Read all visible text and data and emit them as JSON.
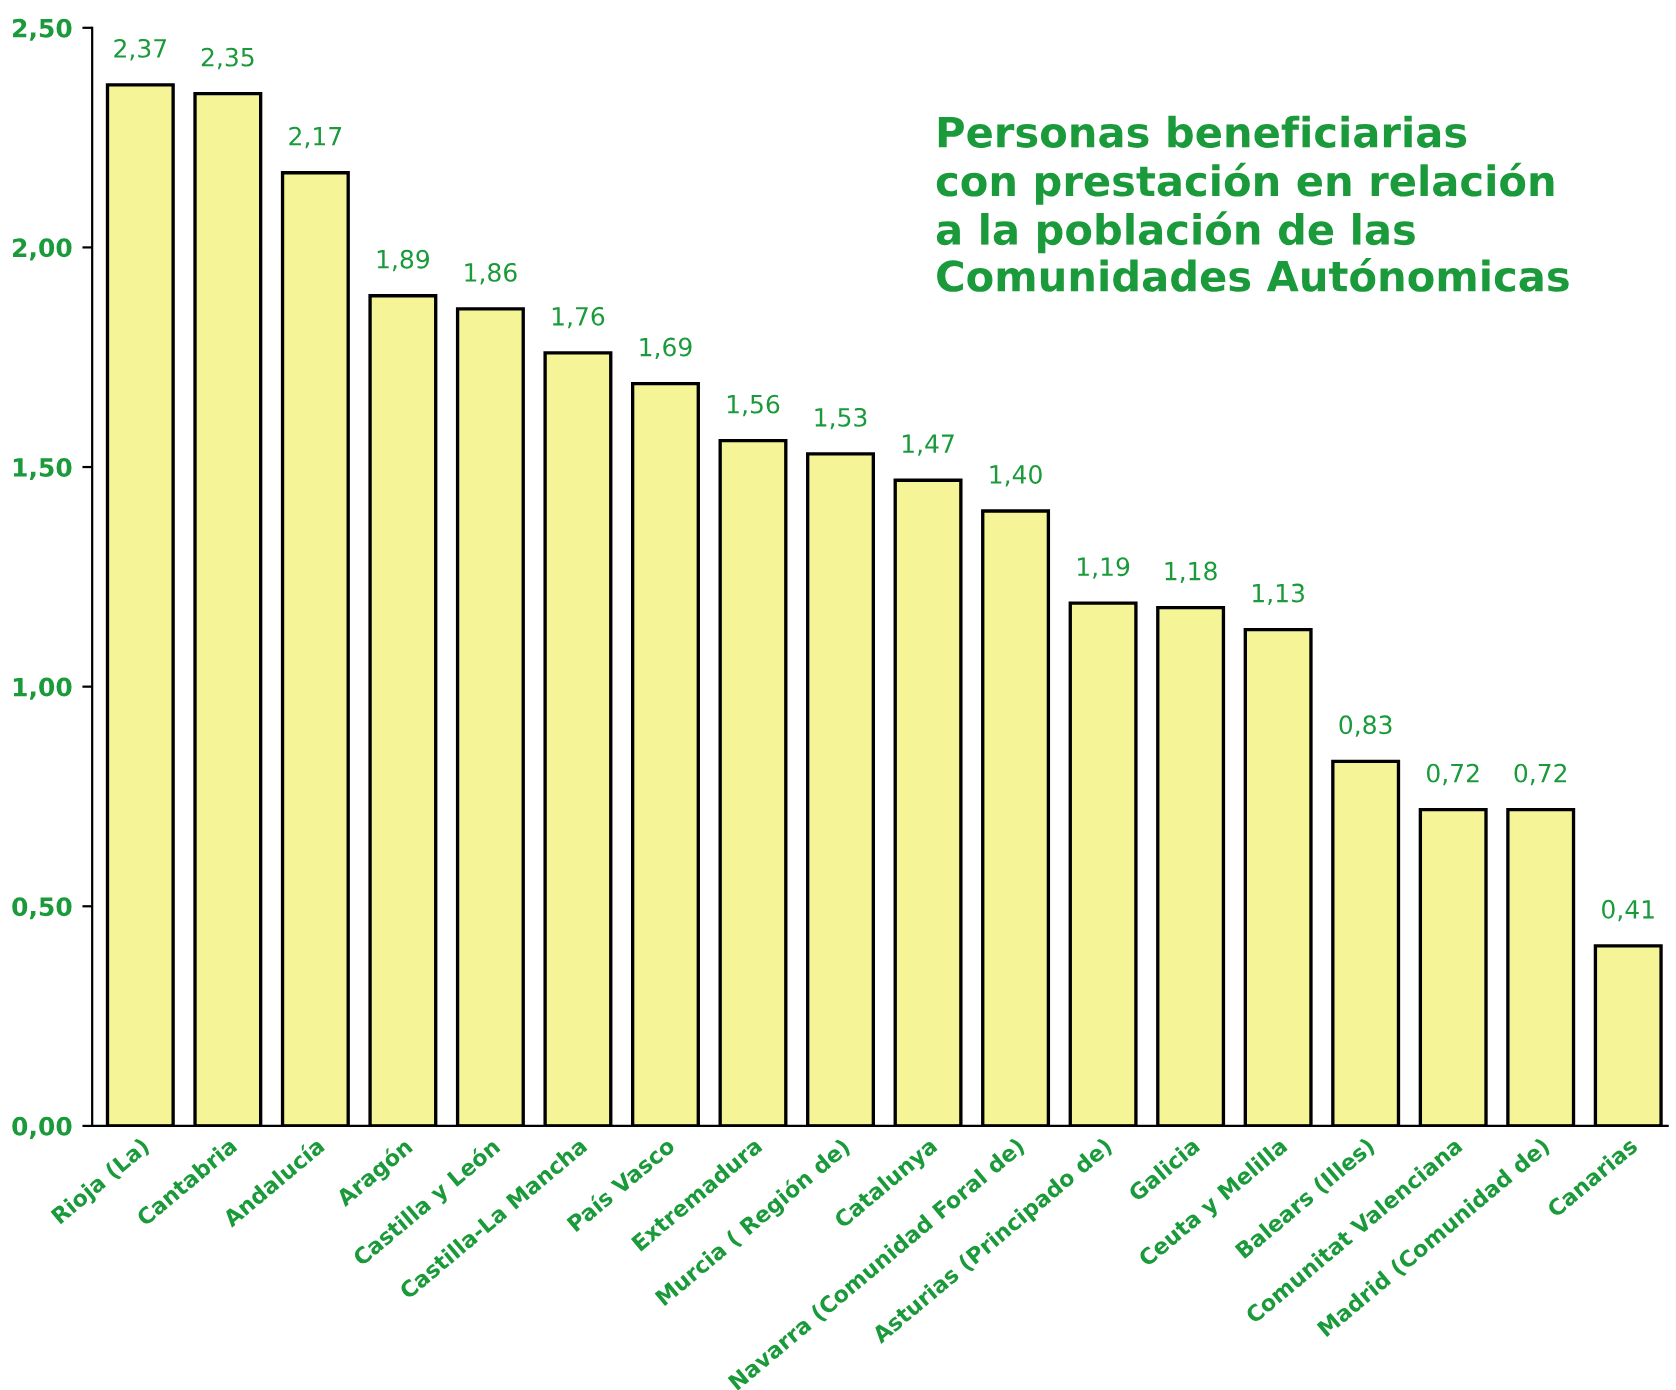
{
  "chart_data": {
    "type": "bar",
    "title": "Personas beneficiarias\ncon prestación en relación\na la población de las\nComunidades Autónomicas",
    "categories": [
      "Rioja (La)",
      "Cantabria",
      "Andalucía",
      "Aragón",
      "Castilla y León",
      "Castilla-La Mancha",
      "País Vasco",
      "Extremadura",
      "Murcia ( Región de)",
      "Catalunya",
      "Navarra (Comunidad Foral de)",
      "Asturias (Principado de)",
      "Galicia",
      "Ceuta y Melilla",
      "Balears (Illes)",
      "Comunitat Valenciana",
      "Madrid (Comunidad de)",
      "Canarias"
    ],
    "values": [
      2.37,
      2.35,
      2.17,
      1.89,
      1.86,
      1.76,
      1.69,
      1.56,
      1.53,
      1.47,
      1.4,
      1.19,
      1.18,
      1.13,
      0.83,
      0.72,
      0.72,
      0.41
    ],
    "value_labels": [
      "2,37",
      "2,35",
      "2,17",
      "1,89",
      "1,86",
      "1,76",
      "1,69",
      "1,56",
      "1,53",
      "1,47",
      "1,40",
      "1,19",
      "1,18",
      "1,13",
      "0,83",
      "0,72",
      "0,72",
      "0,41"
    ],
    "color": "#f5f597",
    "ylim": [
      0,
      2.5
    ],
    "yticks": [
      {
        "value": 0,
        "label": "0,00"
      },
      {
        "value": 0.5,
        "label": "0,50"
      },
      {
        "value": 1,
        "label": "1,00"
      },
      {
        "value": 1.5,
        "label": "1,50"
      },
      {
        "value": 2,
        "label": "2,00"
      },
      {
        "value": 2.5,
        "label": "2,50"
      }
    ],
    "grid": false,
    "legend": false
  }
}
